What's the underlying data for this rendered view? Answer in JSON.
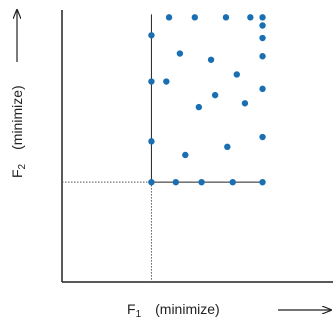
{
  "chart_data": {
    "type": "scatter",
    "title": "",
    "xlabel": "F1 (minimize)",
    "ylabel": "F2 (minimize)",
    "x_axis": {
      "variable": "F",
      "subscript": "1",
      "qualifier": "(minimize)"
    },
    "y_axis": {
      "variable": "F",
      "subscript": "2",
      "qualifier": "(minimize)"
    },
    "xlim": [
      0,
      10
    ],
    "ylim": [
      0,
      10
    ],
    "grid": false,
    "colors": {
      "points": "#1a6fb3",
      "axes": "#222222",
      "guides": "#555555"
    },
    "reference_point": {
      "x": 3.3,
      "y": 3.67
    },
    "points": [
      {
        "x": 3.3,
        "y": 3.67
      },
      {
        "x": 4.2,
        "y": 3.67
      },
      {
        "x": 5.15,
        "y": 3.67
      },
      {
        "x": 6.3,
        "y": 3.67
      },
      {
        "x": 7.4,
        "y": 3.67
      },
      {
        "x": 4.55,
        "y": 4.67
      },
      {
        "x": 6.1,
        "y": 4.97
      },
      {
        "x": 3.3,
        "y": 5.17
      },
      {
        "x": 5.05,
        "y": 6.43
      },
      {
        "x": 7.4,
        "y": 5.33
      },
      {
        "x": 5.65,
        "y": 6.87
      },
      {
        "x": 6.75,
        "y": 6.57
      },
      {
        "x": 7.4,
        "y": 7.1
      },
      {
        "x": 3.3,
        "y": 7.37
      },
      {
        "x": 3.85,
        "y": 7.37
      },
      {
        "x": 6.45,
        "y": 7.63
      },
      {
        "x": 5.5,
        "y": 8.17
      },
      {
        "x": 4.35,
        "y": 8.4
      },
      {
        "x": 7.4,
        "y": 8.3
      },
      {
        "x": 7.4,
        "y": 8.97
      },
      {
        "x": 3.3,
        "y": 9.07
      },
      {
        "x": 7.4,
        "y": 9.43
      },
      {
        "x": 3.95,
        "y": 9.73
      },
      {
        "x": 4.9,
        "y": 9.73
      },
      {
        "x": 6.05,
        "y": 9.73
      },
      {
        "x": 6.95,
        "y": 9.73
      },
      {
        "x": 7.4,
        "y": 9.73
      }
    ]
  }
}
